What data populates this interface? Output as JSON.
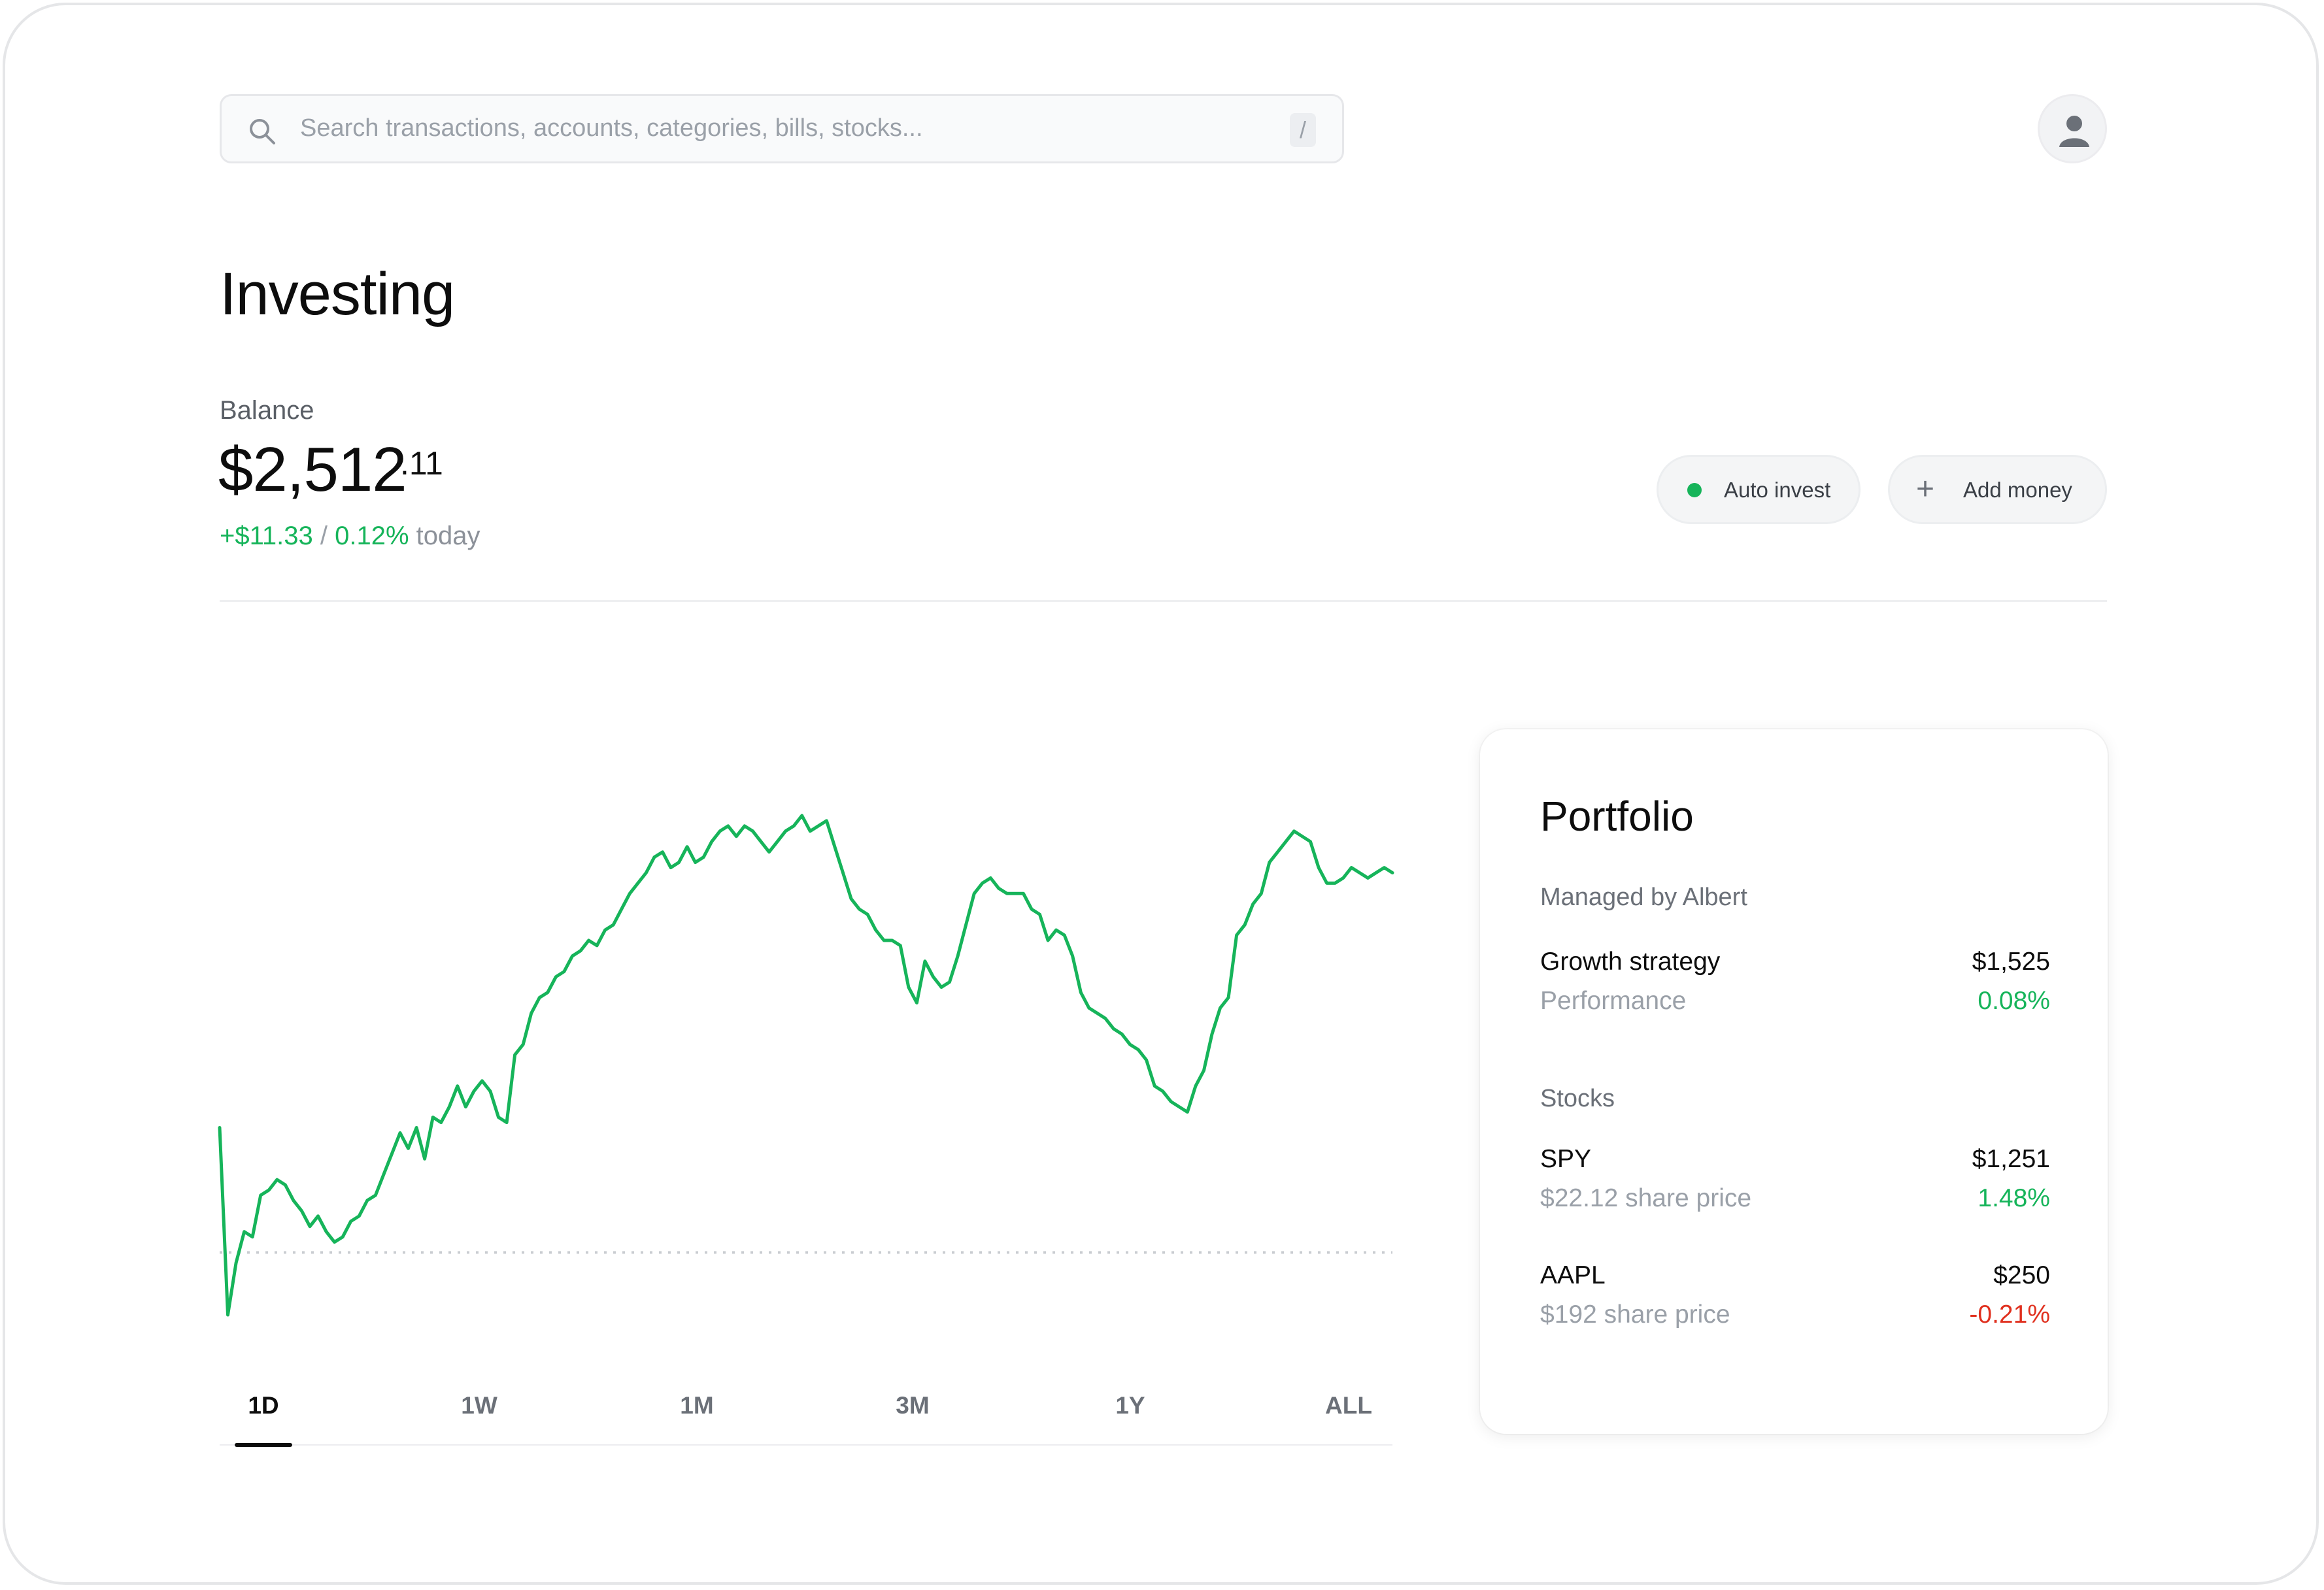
{
  "search": {
    "placeholder": "Search transactions, accounts, categories, bills, stocks...",
    "shortcut": "/",
    "icon": "search-icon"
  },
  "user": {
    "icon": "user-icon"
  },
  "page": {
    "title": "Investing"
  },
  "balance": {
    "label": "Balance",
    "amount": "$2,512",
    "cents": ".11",
    "change_amount": "+$11.33",
    "change_separator": "/",
    "change_percent": "0.12%",
    "change_period": "today"
  },
  "actions": {
    "auto_invest": "Auto invest",
    "add_money": "Add money",
    "auto_invest_status_color": "#16b45a"
  },
  "chart_data": {
    "type": "line",
    "color": "#16b45a",
    "baseline": 0,
    "baseline_style": "dotted",
    "y": [
      1.2,
      -0.6,
      -0.1,
      0.2,
      0.15,
      0.55,
      0.6,
      0.7,
      0.65,
      0.5,
      0.4,
      0.25,
      0.35,
      0.2,
      0.1,
      0.15,
      0.3,
      0.35,
      0.5,
      0.55,
      0.75,
      0.95,
      1.15,
      1.0,
      1.2,
      0.9,
      1.3,
      1.25,
      1.4,
      1.6,
      1.4,
      1.55,
      1.65,
      1.55,
      1.3,
      1.25,
      1.9,
      2.0,
      2.3,
      2.45,
      2.5,
      2.65,
      2.7,
      2.85,
      2.9,
      3.0,
      2.95,
      3.1,
      3.15,
      3.3,
      3.45,
      3.55,
      3.65,
      3.8,
      3.85,
      3.7,
      3.75,
      3.9,
      3.75,
      3.8,
      3.95,
      4.05,
      4.1,
      4.0,
      4.1,
      4.05,
      3.95,
      3.85,
      3.95,
      4.05,
      4.1,
      4.2,
      4.05,
      4.1,
      4.15,
      3.9,
      3.65,
      3.4,
      3.3,
      3.25,
      3.1,
      3.0,
      3.0,
      2.95,
      2.55,
      2.4,
      2.8,
      2.65,
      2.55,
      2.6,
      2.85,
      3.15,
      3.45,
      3.55,
      3.6,
      3.5,
      3.45,
      3.45,
      3.45,
      3.3,
      3.25,
      3.0,
      3.1,
      3.05,
      2.85,
      2.5,
      2.35,
      2.3,
      2.25,
      2.15,
      2.1,
      2.0,
      1.95,
      1.85,
      1.6,
      1.55,
      1.45,
      1.4,
      1.35,
      1.6,
      1.75,
      2.1,
      2.35,
      2.45,
      3.05,
      3.15,
      3.35,
      3.45,
      3.75,
      3.85,
      3.95,
      4.05,
      4.0,
      3.95,
      3.7,
      3.55,
      3.55,
      3.6,
      3.7,
      3.65,
      3.6,
      3.65,
      3.7,
      3.65
    ],
    "xlim": [
      0,
      149
    ],
    "grid": false
  },
  "ranges": [
    "1D",
    "1W",
    "1M",
    "3M",
    "1Y",
    "ALL"
  ],
  "active_range": "1D",
  "portfolio": {
    "title": "Portfolio",
    "managed_label": "Managed by Albert",
    "strategy": {
      "name": "Growth strategy",
      "value": "$1,525",
      "sub": "Performance",
      "perf": "0.08%",
      "trend": "positive"
    },
    "stocks_label": "Stocks",
    "stocks": [
      {
        "ticker": "SPY",
        "value": "$1,251",
        "sub": "$22.12 share price",
        "perf": "1.48%",
        "trend": "positive"
      },
      {
        "ticker": "AAPL",
        "value": "$250",
        "sub": "$192 share price",
        "perf": "-0.21%",
        "trend": "negative"
      }
    ]
  },
  "colors": {
    "positive": "#16b45a",
    "negative": "#e0301e"
  }
}
